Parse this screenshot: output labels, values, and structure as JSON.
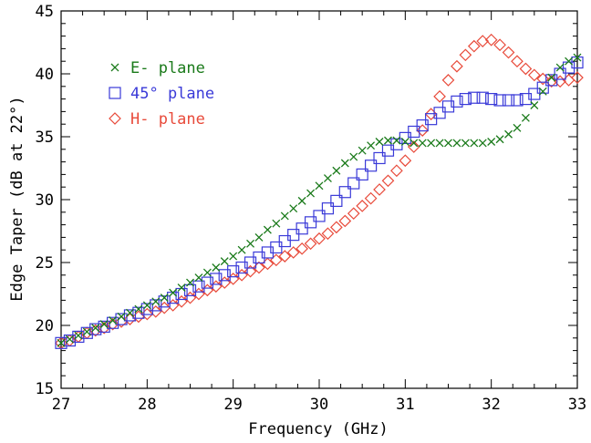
{
  "chart_data": {
    "type": "scatter",
    "title": "",
    "xlabel": "Frequency (GHz)",
    "ylabel": "Edge Taper (dB at 22°)",
    "xlim": [
      27,
      33
    ],
    "ylim": [
      15,
      45
    ],
    "xticks": [
      "27",
      "28",
      "29",
      "30",
      "31",
      "32",
      "33"
    ],
    "yticks": [
      "15",
      "20",
      "25",
      "30",
      "35",
      "40",
      "45"
    ],
    "grid": false,
    "legend_position": "top-left",
    "series": [
      {
        "name": "E- plane",
        "marker": "x",
        "color": "#1a7a1a",
        "x": [
          27.0,
          27.1,
          27.2,
          27.3,
          27.4,
          27.5,
          27.6,
          27.7,
          27.8,
          27.9,
          28.0,
          28.1,
          28.2,
          28.3,
          28.4,
          28.5,
          28.6,
          28.7,
          28.8,
          28.9,
          29.0,
          29.1,
          29.2,
          29.3,
          29.4,
          29.5,
          29.6,
          29.7,
          29.8,
          29.9,
          30.0,
          30.1,
          30.2,
          30.3,
          30.4,
          30.5,
          30.6,
          30.7,
          30.8,
          30.9,
          31.0,
          31.1,
          31.2,
          31.3,
          31.4,
          31.5,
          31.6,
          31.7,
          31.8,
          31.9,
          32.0,
          32.1,
          32.2,
          32.3,
          32.4,
          32.5,
          32.6,
          32.7,
          32.8,
          32.9,
          33.0
        ],
        "y": [
          18.6,
          18.9,
          19.2,
          19.5,
          19.8,
          20.1,
          20.4,
          20.7,
          21.0,
          21.3,
          21.6,
          21.9,
          22.2,
          22.6,
          23.0,
          23.4,
          23.8,
          24.2,
          24.6,
          25.1,
          25.5,
          26.0,
          26.5,
          27.0,
          27.6,
          28.1,
          28.7,
          29.3,
          29.9,
          30.5,
          31.1,
          31.7,
          32.3,
          32.9,
          33.4,
          33.9,
          34.3,
          34.6,
          34.7,
          34.7,
          34.6,
          34.5,
          34.5,
          34.5,
          34.5,
          34.5,
          34.5,
          34.5,
          34.5,
          34.5,
          34.6,
          34.8,
          35.2,
          35.7,
          36.5,
          37.5,
          38.6,
          39.7,
          40.5,
          41.0,
          41.3
        ]
      },
      {
        "name": "45° plane",
        "marker": "square",
        "color": "#3a3ad8",
        "x": [
          27.0,
          27.1,
          27.2,
          27.3,
          27.4,
          27.5,
          27.6,
          27.7,
          27.8,
          27.9,
          28.0,
          28.1,
          28.2,
          28.3,
          28.4,
          28.5,
          28.6,
          28.7,
          28.8,
          28.9,
          29.0,
          29.1,
          29.2,
          29.3,
          29.4,
          29.5,
          29.6,
          29.7,
          29.8,
          29.9,
          30.0,
          30.1,
          30.2,
          30.3,
          30.4,
          30.5,
          30.6,
          30.7,
          30.8,
          30.9,
          31.0,
          31.1,
          31.2,
          31.3,
          31.4,
          31.5,
          31.6,
          31.7,
          31.8,
          31.9,
          32.0,
          32.1,
          32.2,
          32.3,
          32.4,
          32.5,
          32.6,
          32.7,
          32.8,
          32.9,
          33.0
        ],
        "y": [
          18.6,
          18.8,
          19.1,
          19.4,
          19.7,
          19.9,
          20.2,
          20.5,
          20.8,
          21.0,
          21.3,
          21.6,
          21.9,
          22.2,
          22.5,
          22.8,
          23.1,
          23.4,
          23.7,
          24.0,
          24.3,
          24.6,
          25.0,
          25.4,
          25.8,
          26.2,
          26.7,
          27.2,
          27.7,
          28.2,
          28.7,
          29.3,
          29.9,
          30.6,
          31.3,
          32.0,
          32.7,
          33.3,
          33.9,
          34.4,
          34.9,
          35.4,
          35.9,
          36.4,
          36.9,
          37.4,
          37.8,
          38.0,
          38.1,
          38.1,
          38.0,
          37.9,
          37.9,
          37.9,
          38.0,
          38.4,
          38.9,
          39.5,
          40.0,
          40.5,
          40.9
        ]
      },
      {
        "name": "H- plane",
        "marker": "diamond",
        "color": "#e84a3a",
        "x": [
          27.0,
          27.1,
          27.2,
          27.3,
          27.4,
          27.5,
          27.6,
          27.7,
          27.8,
          27.9,
          28.0,
          28.1,
          28.2,
          28.3,
          28.4,
          28.5,
          28.6,
          28.7,
          28.8,
          28.9,
          29.0,
          29.1,
          29.2,
          29.3,
          29.4,
          29.5,
          29.6,
          29.7,
          29.8,
          29.9,
          30.0,
          30.1,
          30.2,
          30.3,
          30.4,
          30.5,
          30.6,
          30.7,
          30.8,
          30.9,
          31.0,
          31.1,
          31.2,
          31.3,
          31.4,
          31.5,
          31.6,
          31.7,
          31.8,
          31.9,
          32.0,
          32.1,
          32.2,
          32.3,
          32.4,
          32.5,
          32.6,
          32.7,
          32.8,
          32.9,
          33.0
        ],
        "y": [
          18.6,
          18.8,
          19.1,
          19.4,
          19.6,
          19.8,
          20.1,
          20.3,
          20.5,
          20.7,
          20.9,
          21.1,
          21.4,
          21.6,
          21.9,
          22.2,
          22.5,
          22.8,
          23.1,
          23.4,
          23.7,
          24.0,
          24.3,
          24.6,
          24.9,
          25.2,
          25.5,
          25.8,
          26.1,
          26.5,
          26.9,
          27.3,
          27.8,
          28.3,
          28.9,
          29.5,
          30.1,
          30.8,
          31.5,
          32.3,
          33.1,
          34.2,
          35.5,
          36.8,
          38.2,
          39.5,
          40.6,
          41.5,
          42.2,
          42.6,
          42.7,
          42.3,
          41.7,
          41.0,
          40.4,
          39.9,
          39.6,
          39.4,
          39.4,
          39.5,
          39.7
        ]
      }
    ]
  }
}
